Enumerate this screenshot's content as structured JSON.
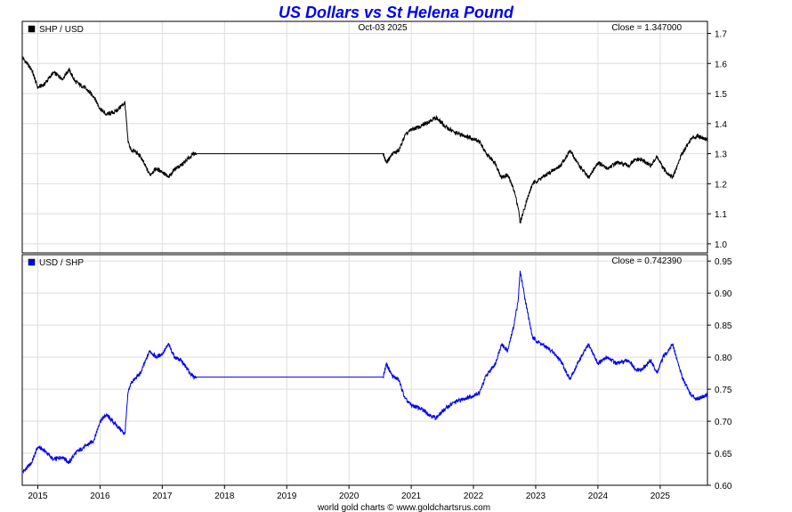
{
  "chart_data": {
    "title": "US Dollars vs St Helena Pound",
    "date_label": "Oct-03  2025",
    "footer": "world gold charts © www.goldchartsrus.com",
    "x_ticks": [
      "2015",
      "2016",
      "2017",
      "2018",
      "2019",
      "2020",
      "2021",
      "2022",
      "2023",
      "2024",
      "2025"
    ],
    "colors": {
      "title": "#0000ee",
      "top_series": "#000000",
      "bottom_series": "#0000ee",
      "grid": "#dddddd"
    },
    "panels": [
      {
        "type": "line",
        "legend": "SHP / USD",
        "close_label": "Close = 1.347000",
        "ylim": [
          0.97,
          1.74
        ],
        "y_ticks": [
          "1.7",
          "1.6",
          "1.5",
          "1.4",
          "1.3",
          "1.2",
          "1.1",
          "1.0"
        ],
        "series": {
          "x": [
            2014.75,
            2014.9,
            2015.0,
            2015.1,
            2015.25,
            2015.4,
            2015.5,
            2015.6,
            2015.75,
            2015.9,
            2016.0,
            2016.1,
            2016.25,
            2016.4,
            2016.45,
            2016.5,
            2016.55,
            2016.65,
            2016.8,
            2016.9,
            2017.0,
            2017.1,
            2017.2,
            2017.3,
            2017.45,
            2017.5,
            2017.55,
            2020.55,
            2020.6,
            2020.7,
            2020.8,
            2020.9,
            2021.0,
            2021.15,
            2021.3,
            2021.4,
            2021.55,
            2021.7,
            2021.85,
            2022.0,
            2022.1,
            2022.2,
            2022.35,
            2022.45,
            2022.55,
            2022.65,
            2022.72,
            2022.75,
            2022.85,
            2022.95,
            2023.1,
            2023.25,
            2023.4,
            2023.55,
            2023.7,
            2023.85,
            2024.0,
            2024.15,
            2024.3,
            2024.5,
            2024.6,
            2024.7,
            2024.85,
            2024.95,
            2025.05,
            2025.2,
            2025.35,
            2025.5,
            2025.6,
            2025.76
          ],
          "values": [
            1.62,
            1.58,
            1.52,
            1.53,
            1.57,
            1.55,
            1.58,
            1.54,
            1.52,
            1.49,
            1.45,
            1.43,
            1.44,
            1.47,
            1.34,
            1.31,
            1.31,
            1.29,
            1.23,
            1.25,
            1.24,
            1.22,
            1.25,
            1.26,
            1.29,
            1.3,
            1.3,
            1.3,
            1.27,
            1.3,
            1.31,
            1.36,
            1.38,
            1.39,
            1.41,
            1.42,
            1.39,
            1.37,
            1.36,
            1.35,
            1.34,
            1.3,
            1.27,
            1.22,
            1.23,
            1.18,
            1.12,
            1.07,
            1.14,
            1.2,
            1.22,
            1.24,
            1.26,
            1.31,
            1.26,
            1.22,
            1.27,
            1.25,
            1.27,
            1.26,
            1.28,
            1.28,
            1.26,
            1.29,
            1.25,
            1.22,
            1.3,
            1.35,
            1.36,
            1.347
          ]
        }
      },
      {
        "type": "line",
        "legend": "USD / SHP",
        "close_label": "Close = 0.742390",
        "ylim": [
          0.6,
          0.96
        ],
        "y_ticks": [
          "0.95",
          "0.90",
          "0.85",
          "0.80",
          "0.75",
          "0.70",
          "0.65",
          "0.60"
        ],
        "series": {
          "x": [
            2014.75,
            2014.9,
            2015.0,
            2015.1,
            2015.25,
            2015.4,
            2015.5,
            2015.6,
            2015.75,
            2015.9,
            2016.0,
            2016.1,
            2016.25,
            2016.4,
            2016.45,
            2016.5,
            2016.55,
            2016.65,
            2016.8,
            2016.9,
            2017.0,
            2017.1,
            2017.2,
            2017.3,
            2017.45,
            2017.5,
            2017.55,
            2020.55,
            2020.6,
            2020.7,
            2020.8,
            2020.9,
            2021.0,
            2021.15,
            2021.3,
            2021.4,
            2021.55,
            2021.7,
            2021.85,
            2022.0,
            2022.1,
            2022.2,
            2022.35,
            2022.45,
            2022.55,
            2022.65,
            2022.72,
            2022.75,
            2022.85,
            2022.95,
            2023.1,
            2023.25,
            2023.4,
            2023.55,
            2023.7,
            2023.85,
            2024.0,
            2024.15,
            2024.3,
            2024.5,
            2024.6,
            2024.7,
            2024.85,
            2024.95,
            2025.05,
            2025.2,
            2025.35,
            2025.5,
            2025.6,
            2025.76
          ],
          "values": [
            0.62,
            0.635,
            0.66,
            0.655,
            0.64,
            0.645,
            0.635,
            0.65,
            0.66,
            0.67,
            0.7,
            0.71,
            0.695,
            0.68,
            0.745,
            0.76,
            0.765,
            0.775,
            0.81,
            0.8,
            0.805,
            0.82,
            0.8,
            0.795,
            0.775,
            0.769,
            0.769,
            0.769,
            0.79,
            0.77,
            0.765,
            0.735,
            0.725,
            0.72,
            0.71,
            0.705,
            0.72,
            0.73,
            0.735,
            0.74,
            0.745,
            0.77,
            0.79,
            0.82,
            0.81,
            0.85,
            0.89,
            0.935,
            0.88,
            0.83,
            0.82,
            0.81,
            0.795,
            0.765,
            0.795,
            0.82,
            0.79,
            0.8,
            0.79,
            0.795,
            0.78,
            0.78,
            0.795,
            0.775,
            0.8,
            0.82,
            0.77,
            0.74,
            0.735,
            0.742
          ]
        }
      }
    ]
  }
}
